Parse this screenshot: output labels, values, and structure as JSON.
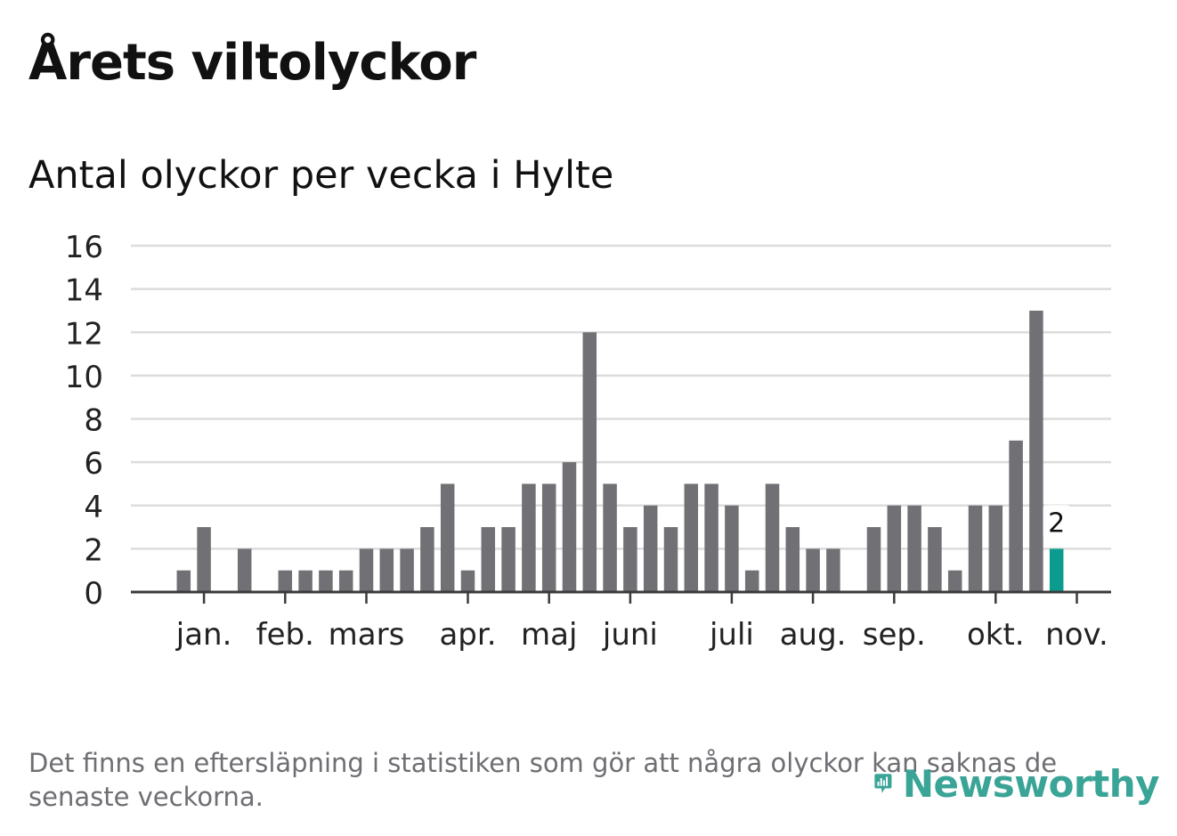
{
  "title": "Årets viltolyckor",
  "subtitle": "Antal olyckor per vecka i Hylte",
  "footnote": "Det finns en eftersläpning i statistiken som gör att några olyckor kan saknas de senaste veckorna.",
  "brand": {
    "name": "Newsworthy",
    "icon": "newsworthy-logo-icon",
    "color": "#2a9d8f"
  },
  "colors": {
    "bar": "#717075",
    "highlight": "#0b9c8f",
    "grid": "#dcdcdc",
    "axis": "#3a3a3a",
    "text": "#111111"
  },
  "chart_data": {
    "type": "bar",
    "title": "Antal olyckor per vecka i Hylte",
    "xlabel": "",
    "ylabel": "",
    "ylim": [
      0,
      16
    ],
    "yticks": [
      0,
      2,
      4,
      6,
      8,
      10,
      12,
      14,
      16
    ],
    "grid": true,
    "values": [
      0,
      1,
      3,
      0,
      2,
      0,
      1,
      1,
      1,
      1,
      2,
      2,
      2,
      3,
      5,
      1,
      3,
      3,
      5,
      5,
      6,
      12,
      5,
      3,
      4,
      3,
      5,
      5,
      4,
      1,
      5,
      3,
      2,
      2,
      0,
      3,
      4,
      4,
      3,
      1,
      4,
      4,
      7,
      13,
      2
    ],
    "highlight_last": true,
    "highlight_label": "2",
    "month_labels": [
      {
        "label": "jan.",
        "week": 2
      },
      {
        "label": "feb.",
        "week": 6
      },
      {
        "label": "mars",
        "week": 10
      },
      {
        "label": "apr.",
        "week": 15
      },
      {
        "label": "maj",
        "week": 19
      },
      {
        "label": "juni",
        "week": 23
      },
      {
        "label": "juli",
        "week": 28
      },
      {
        "label": "aug.",
        "week": 32
      },
      {
        "label": "sep.",
        "week": 36
      },
      {
        "label": "okt.",
        "week": 41
      },
      {
        "label": "nov.",
        "week": 45
      }
    ]
  }
}
